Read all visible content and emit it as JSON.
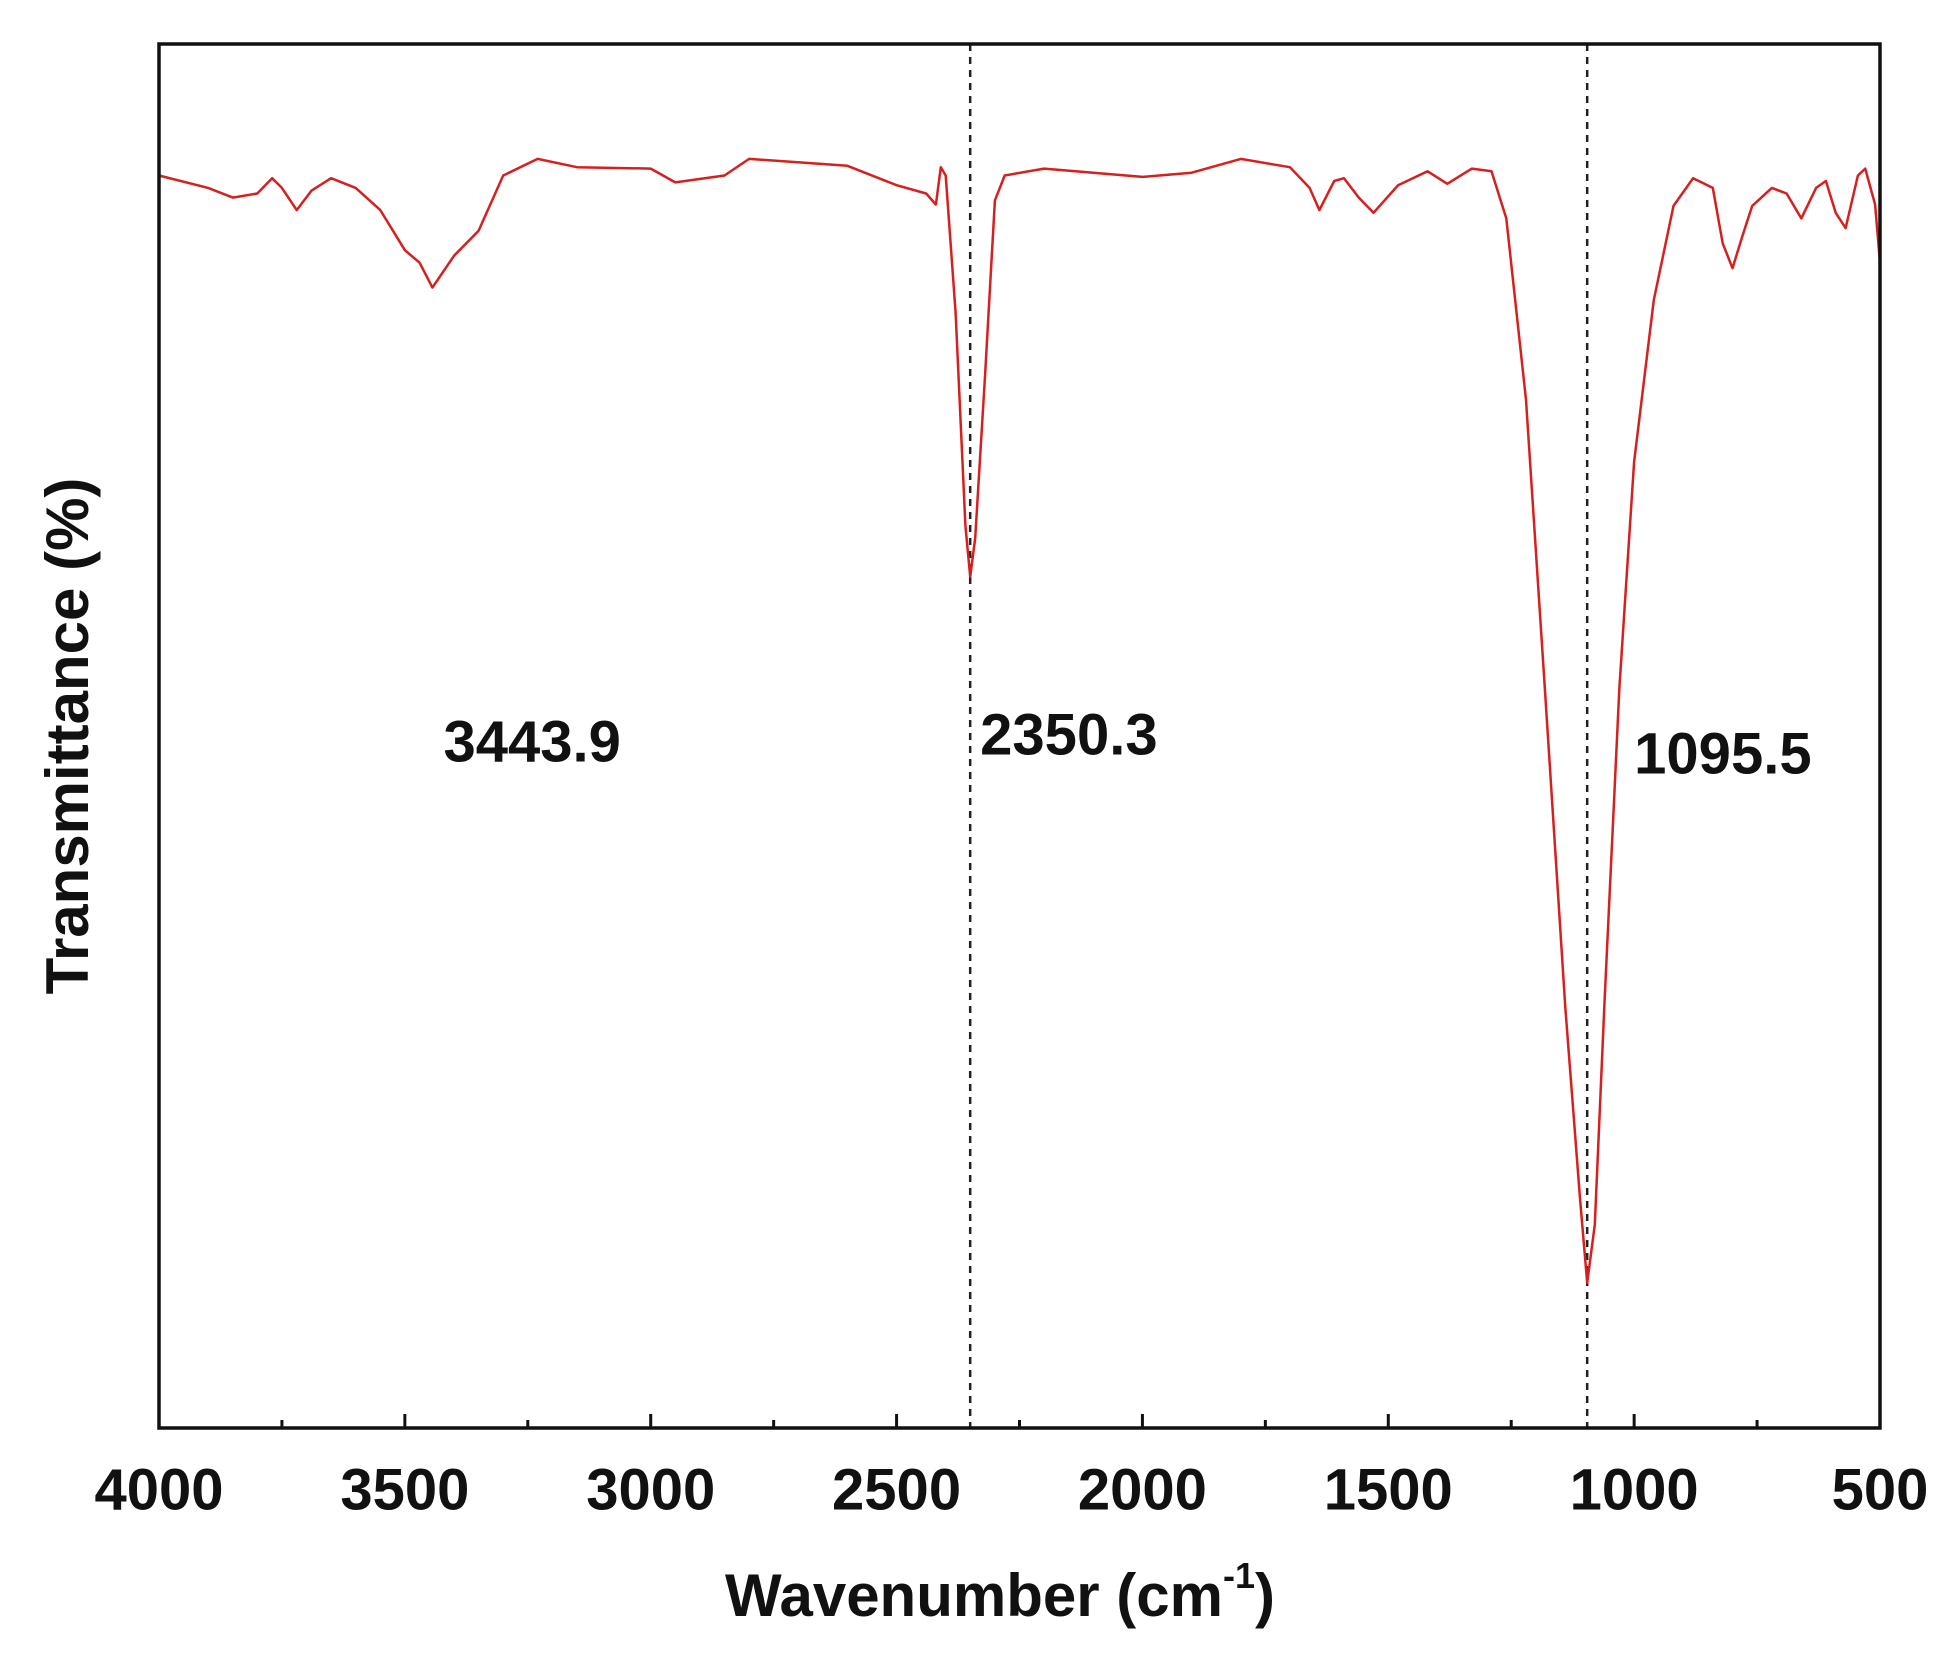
{
  "chart_data": {
    "type": "line",
    "x_label": {
      "text": "Wavenumber (cm",
      "superscript": "-1",
      "suffix": ")"
    },
    "y_label": "Transmittance (%)",
    "color": "#d62020",
    "xlim": [
      4000,
      500
    ],
    "ylim": [
      0,
      100
    ],
    "xticks": [
      4000,
      3500,
      3000,
      2500,
      2000,
      1500,
      1000,
      500
    ],
    "xminorticks": [
      3750,
      3250,
      2750,
      2250,
      1750,
      1250,
      750
    ],
    "peaks": [
      {
        "value": 3443.9,
        "dashed": false
      },
      {
        "value": 2350.3,
        "dashed": true
      },
      {
        "value": 1095.5,
        "dashed": true
      }
    ],
    "x": [
      4000,
      3900,
      3850,
      3800,
      3770,
      3750,
      3720,
      3690,
      3650,
      3600,
      3550,
      3500,
      3470,
      3443.9,
      3400,
      3350,
      3300,
      3230,
      3150,
      3000,
      2950,
      2850,
      2800,
      2600,
      2500,
      2440,
      2420,
      2410,
      2400,
      2380,
      2360,
      2350.3,
      2340,
      2320,
      2300,
      2280,
      2200,
      2100,
      2000,
      1900,
      1800,
      1700,
      1660,
      1640,
      1610,
      1590,
      1560,
      1530,
      1480,
      1420,
      1380,
      1330,
      1290,
      1260,
      1220,
      1180,
      1140,
      1110,
      1095.5,
      1080,
      1060,
      1030,
      1000,
      960,
      920,
      880,
      840,
      820,
      800,
      780,
      760,
      720,
      690,
      660,
      630,
      610,
      590,
      570,
      545,
      530,
      510,
      500
    ],
    "values": [
      90.5,
      89.6,
      88.9,
      89.2,
      90.3,
      89.6,
      88.0,
      89.4,
      90.3,
      89.6,
      88.0,
      85.1,
      84.2,
      82.4,
      84.7,
      86.5,
      90.5,
      91.7,
      91.1,
      91.0,
      90.0,
      90.5,
      91.7,
      91.2,
      89.8,
      89.2,
      88.4,
      91.1,
      90.5,
      80.6,
      65.2,
      61.5,
      64.3,
      76.1,
      88.7,
      90.5,
      91.0,
      90.7,
      90.4,
      90.7,
      91.7,
      91.1,
      89.6,
      88.0,
      90.1,
      90.3,
      88.9,
      87.8,
      89.8,
      90.8,
      89.9,
      91.0,
      90.8,
      87.4,
      74.3,
      52.6,
      30.4,
      16.5,
      10.5,
      14.7,
      30.9,
      53.5,
      69.8,
      81.5,
      88.3,
      90.3,
      89.6,
      85.6,
      83.8,
      86.1,
      88.3,
      89.6,
      89.2,
      87.4,
      89.6,
      90.1,
      87.8,
      86.7,
      90.5,
      91.0,
      88.4,
      84.2
    ]
  }
}
